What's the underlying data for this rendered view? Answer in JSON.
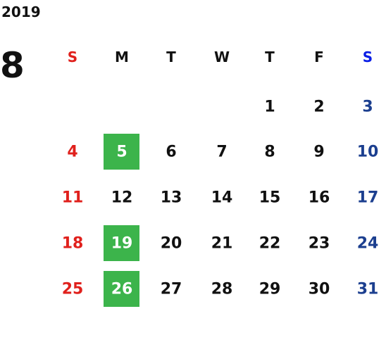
{
  "year": "2019",
  "month": "8",
  "weekdays": [
    "S",
    "M",
    "T",
    "W",
    "T",
    "F",
    "S"
  ],
  "weeks": [
    [
      null,
      null,
      null,
      null,
      {
        "day": 1
      },
      {
        "day": 2
      },
      {
        "day": 3
      }
    ],
    [
      {
        "day": 4
      },
      {
        "day": 5,
        "highlighted": true
      },
      {
        "day": 6
      },
      {
        "day": 7
      },
      {
        "day": 8
      },
      {
        "day": 9
      },
      {
        "day": 10
      }
    ],
    [
      {
        "day": 11
      },
      {
        "day": 12
      },
      {
        "day": 13
      },
      {
        "day": 14
      },
      {
        "day": 15
      },
      {
        "day": 16
      },
      {
        "day": 17
      }
    ],
    [
      {
        "day": 18
      },
      {
        "day": 19,
        "highlighted": true
      },
      {
        "day": 20
      },
      {
        "day": 21
      },
      {
        "day": 22
      },
      {
        "day": 23
      },
      {
        "day": 24
      }
    ],
    [
      {
        "day": 25
      },
      {
        "day": 26,
        "highlighted": true
      },
      {
        "day": 27
      },
      {
        "day": 28
      },
      {
        "day": 29
      },
      {
        "day": 30
      },
      {
        "day": 31
      }
    ]
  ]
}
